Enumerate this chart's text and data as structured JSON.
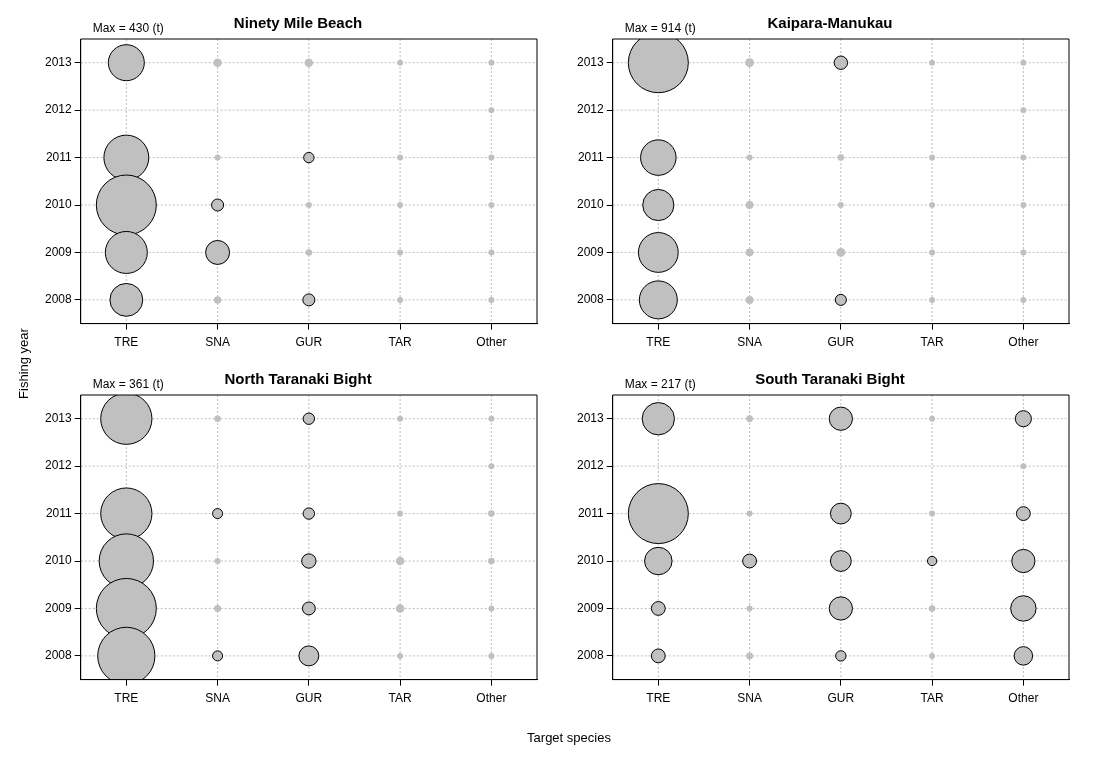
{
  "chart_data": [
    {
      "type": "bubble",
      "title": "Ninety Mile Beach",
      "annotations": [
        "Max = 430 (t)"
      ],
      "xlabel": "Target species",
      "ylabel": "Fishing year",
      "categories": [
        "TRE",
        "SNA",
        "GUR",
        "TAR",
        "Other"
      ],
      "ylim": [
        2007.5,
        2013.5
      ],
      "yticks": [
        2008,
        2009,
        2010,
        2011,
        2012,
        2013
      ],
      "grid": true,
      "legend": false,
      "marker": "circle",
      "series": [
        {
          "color": "#c0c0c0",
          "values": [
            2008,
            2008,
            2008,
            2008,
            2008
          ],
          "sizes": [
            0.3,
            0.015,
            0.04,
            0.01,
            0.01
          ]
        },
        {
          "color": "#c0c0c0",
          "values": [
            2009,
            2009,
            2009,
            2009,
            2009
          ],
          "sizes": [
            0.49,
            0.16,
            0.012,
            0.01,
            0.01
          ]
        },
        {
          "color": "#c0c0c0",
          "values": [
            2010,
            2010,
            2010,
            2010,
            2010
          ],
          "sizes": [
            1,
            0.04,
            0.01,
            0.01,
            0.01
          ]
        },
        {
          "color": "#c0c0c0",
          "values": [
            2011,
            2011,
            2011,
            2011,
            2011
          ],
          "sizes": [
            0.56,
            0.01,
            0.03,
            0.01,
            0.01
          ]
        },
        {
          "color": "#c0c0c0",
          "values": [
            null,
            null,
            null,
            null,
            2012
          ],
          "sizes": [
            null,
            null,
            null,
            null,
            0.01
          ]
        },
        {
          "color": "#c0c0c0",
          "values": [
            2013,
            2013,
            2013,
            2013,
            2013
          ],
          "sizes": [
            0.36,
            0.02,
            0.02,
            0.01,
            0.01
          ]
        }
      ]
    },
    {
      "type": "bubble",
      "title": "Kaipara-Manukau",
      "annotations": [
        "Max = 914 (t)"
      ],
      "categories": [
        "TRE",
        "SNA",
        "GUR",
        "TAR",
        "Other"
      ],
      "ylim": [
        2007.5,
        2013.5
      ],
      "yticks": [
        2008,
        2009,
        2010,
        2011,
        2012,
        2013
      ],
      "grid": true,
      "legend": false,
      "marker": "circle",
      "series": [
        {
          "color": "#c0c0c0",
          "values": [
            2008,
            2008,
            2008,
            2008,
            2008
          ],
          "sizes": [
            0.4,
            0.017,
            0.034,
            0.01,
            0.01
          ]
        },
        {
          "color": "#c0c0c0",
          "values": [
            2009,
            2009,
            2009,
            2009,
            2009
          ],
          "sizes": [
            0.44,
            0.017,
            0.022,
            0.01,
            0.01
          ]
        },
        {
          "color": "#c0c0c0",
          "values": [
            2010,
            2010,
            2010,
            2010,
            2010
          ],
          "sizes": [
            0.27,
            0.017,
            0.01,
            0.01,
            0.01
          ]
        },
        {
          "color": "#c0c0c0",
          "values": [
            2011,
            2011,
            2011,
            2011,
            2011
          ],
          "sizes": [
            0.35,
            0.01,
            0.012,
            0.01,
            0.01
          ]
        },
        {
          "color": "#c0c0c0",
          "values": [
            null,
            null,
            null,
            null,
            2012
          ],
          "sizes": [
            null,
            null,
            null,
            null,
            0.01
          ]
        },
        {
          "color": "#c0c0c0",
          "values": [
            2013,
            2013,
            2013,
            2013,
            2013
          ],
          "sizes": [
            1,
            0.022,
            0.05,
            0.01,
            0.01
          ]
        }
      ]
    },
    {
      "type": "bubble",
      "title": "North Taranaki Bight",
      "annotations": [
        "Max = 361 (t)"
      ],
      "categories": [
        "TRE",
        "SNA",
        "GUR",
        "TAR",
        "Other"
      ],
      "ylim": [
        2007.5,
        2013.5
      ],
      "yticks": [
        2008,
        2009,
        2010,
        2011,
        2012,
        2013
      ],
      "grid": true,
      "legend": false,
      "marker": "circle",
      "series": [
        {
          "color": "#c0c0c0",
          "values": [
            2008,
            2008,
            2008,
            2008,
            2008
          ],
          "sizes": [
            0.91,
            0.028,
            0.11,
            0.01,
            0.01
          ]
        },
        {
          "color": "#c0c0c0",
          "values": [
            2009,
            2009,
            2009,
            2009,
            2009
          ],
          "sizes": [
            1,
            0.014,
            0.046,
            0.02,
            0.01
          ]
        },
        {
          "color": "#c0c0c0",
          "values": [
            2010,
            2010,
            2010,
            2010,
            2010
          ],
          "sizes": [
            0.82,
            0.01,
            0.057,
            0.02,
            0.012
          ]
        },
        {
          "color": "#c0c0c0",
          "values": [
            2011,
            2011,
            2011,
            2011,
            2011
          ],
          "sizes": [
            0.73,
            0.028,
            0.036,
            0.01,
            0.012
          ]
        },
        {
          "color": "#c0c0c0",
          "values": [
            null,
            null,
            null,
            null,
            2012
          ],
          "sizes": [
            null,
            null,
            null,
            null,
            0.01
          ]
        },
        {
          "color": "#c0c0c0",
          "values": [
            2013,
            2013,
            2013,
            2013,
            2013
          ],
          "sizes": [
            0.73,
            0.012,
            0.036,
            0.01,
            0.01
          ]
        }
      ]
    },
    {
      "type": "bubble",
      "title": "South Taranaki Bight",
      "annotations": [
        "Max = 217 (t)"
      ],
      "categories": [
        "TRE",
        "SNA",
        "GUR",
        "TAR",
        "Other"
      ],
      "ylim": [
        2007.5,
        2013.5
      ],
      "yticks": [
        2008,
        2009,
        2010,
        2011,
        2012,
        2013
      ],
      "grid": true,
      "legend": false,
      "marker": "circle",
      "series": [
        {
          "color": "#c0c0c0",
          "values": [
            2008,
            2008,
            2008,
            2008,
            2008
          ],
          "sizes": [
            0.053,
            0.013,
            0.03,
            0.01,
            0.095
          ]
        },
        {
          "color": "#c0c0c0",
          "values": [
            2009,
            2009,
            2009,
            2009,
            2009
          ],
          "sizes": [
            0.053,
            0.01,
            0.15,
            0.012,
            0.18
          ]
        },
        {
          "color": "#c0c0c0",
          "values": [
            2010,
            2010,
            2010,
            2010,
            2010
          ],
          "sizes": [
            0.21,
            0.053,
            0.12,
            0.024,
            0.15
          ]
        },
        {
          "color": "#c0c0c0",
          "values": [
            2011,
            2011,
            2011,
            2011,
            2011
          ],
          "sizes": [
            1,
            0.01,
            0.12,
            0.01,
            0.053
          ]
        },
        {
          "color": "#c0c0c0",
          "values": [
            null,
            null,
            null,
            null,
            2012
          ],
          "sizes": [
            null,
            null,
            null,
            null,
            0.01
          ]
        },
        {
          "color": "#c0c0c0",
          "values": [
            2013,
            2013,
            2013,
            2013,
            2013
          ],
          "sizes": [
            0.29,
            0.013,
            0.15,
            0.01,
            0.072
          ]
        }
      ]
    }
  ]
}
